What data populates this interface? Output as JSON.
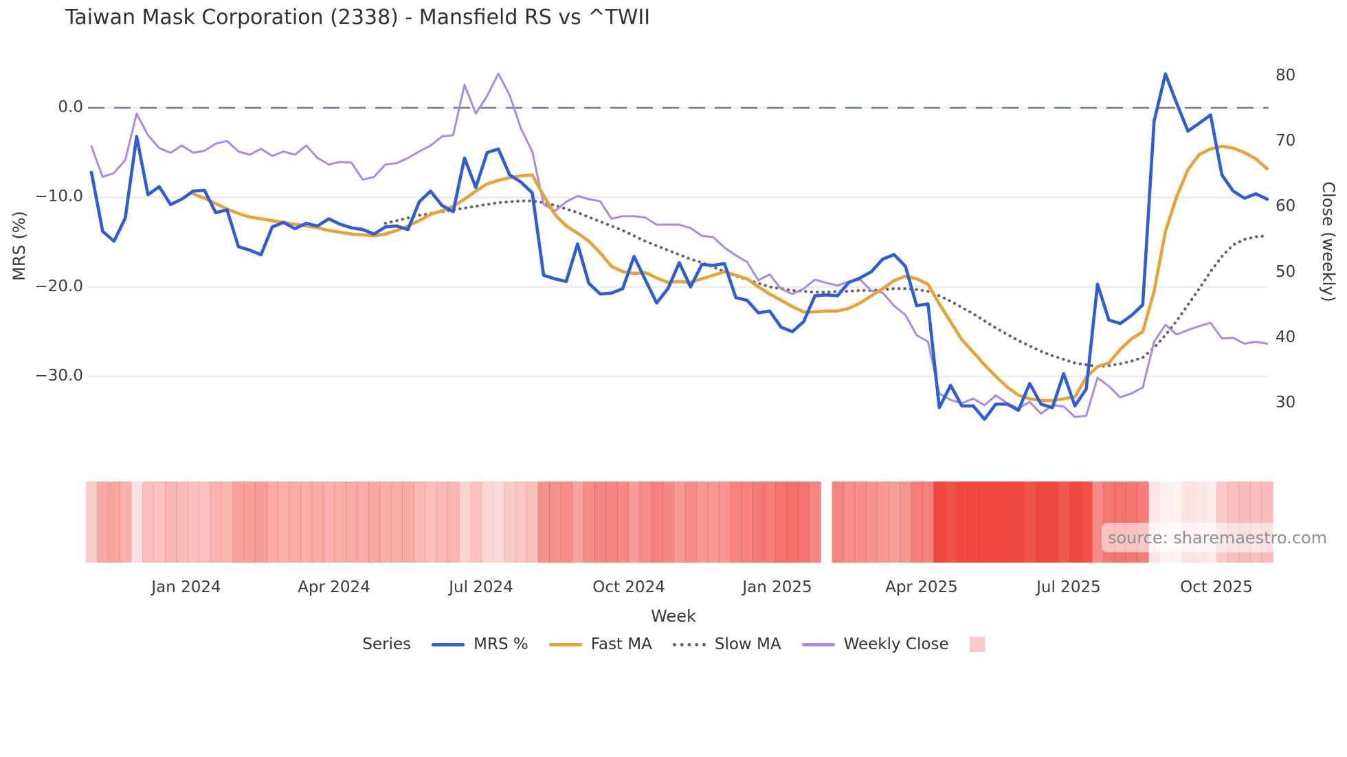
{
  "title": "Taiwan Mask Corporation (2338) - Mansfield RS vs ^TWII",
  "source": "source: sharemaestro.com",
  "colors": {
    "mrs": "#2e5ed6",
    "fast_ma": "#e7a33b",
    "slow_ma": "#63666c",
    "weekly_close": "#aa8be0",
    "zero_dash": "#6a7488",
    "gridline": "#e9ecf3",
    "heat_base": "#ee3e36",
    "legend_patch": "rgba(238,62,54,0.28)"
  },
  "axes": {
    "left": {
      "label": "MRS (%)",
      "ticks": [
        {
          "text": "0.0",
          "value": 0
        },
        {
          "text": "−10.0",
          "value": -10
        },
        {
          "text": "−20.0",
          "value": -20
        },
        {
          "text": "−30.0",
          "value": -30
        }
      ]
    },
    "right": {
      "label": "Close (weekly)",
      "ticks": [
        {
          "text": "80",
          "value": 80
        },
        {
          "text": "70",
          "value": 70
        },
        {
          "text": "60",
          "value": 60
        },
        {
          "text": "50",
          "value": 50
        },
        {
          "text": "40",
          "value": 40
        },
        {
          "text": "30",
          "value": 30
        }
      ]
    },
    "x": {
      "label": "Week",
      "ticks": [
        {
          "text": "Jan 2024",
          "week": 8.39
        },
        {
          "text": "Apr 2024",
          "week": 21.46
        },
        {
          "text": "Jul 2024",
          "week": 34.47
        },
        {
          "text": "Oct 2024",
          "week": 47.54
        },
        {
          "text": "Jan 2025",
          "week": 60.67
        },
        {
          "text": "Apr 2025",
          "week": 73.43
        },
        {
          "text": "Jul 2025",
          "week": 86.44
        },
        {
          "text": "Oct 2025",
          "week": 99.51
        }
      ]
    }
  },
  "legend": {
    "title": "Series",
    "items": [
      {
        "label": "MRS %",
        "swatch": "line",
        "color": "#2e5ed6"
      },
      {
        "label": "Fast MA",
        "swatch": "line",
        "color": "#e7a33b"
      },
      {
        "label": "Slow MA",
        "swatch": "dotted",
        "color": "#63666c"
      },
      {
        "label": "Weekly Close",
        "swatch": "line",
        "color": "#aa8be0"
      },
      {
        "label": "",
        "swatch": "patch",
        "color": "rgba(238,62,54,0.28)"
      }
    ]
  },
  "chart_data": {
    "type": "line",
    "title": "Taiwan Mask Corporation (2338) - Mansfield RS vs ^TWII",
    "xlabel": "Week",
    "ylabel_left": "MRS (%)",
    "ylabel_right": "Close (weekly)",
    "x_unit": "weekly index, Nov 2023 through Nov 2025",
    "weeks": 105,
    "left_ylim": [
      -36,
      4
    ],
    "right_ylim": [
      28,
      82
    ],
    "zero_reference_line": 0,
    "grid": "horizontal only, at left-axis ticks",
    "legend_position": "bottom",
    "series": [
      {
        "name": "MRS %",
        "axis": "left",
        "style": "solid",
        "color": "#2e5ed6",
        "values": [
          -7.2,
          -13.8,
          -14.9,
          -12.3,
          -3.2,
          -9.7,
          -8.8,
          -10.8,
          -10.2,
          -9.3,
          -9.2,
          -11.7,
          -11.4,
          -15.5,
          -15.9,
          -16.4,
          -13.3,
          -12.8,
          -13.5,
          -12.9,
          -13.2,
          -12.4,
          -13.0,
          -13.4,
          -13.6,
          -14.1,
          -13.3,
          -13.2,
          -13.6,
          -10.5,
          -9.3,
          -10.9,
          -11.6,
          -5.6,
          -8.9,
          -5.0,
          -4.6,
          -7.5,
          -8.3,
          -9.5,
          -18.7,
          -19.1,
          -19.4,
          -15.2,
          -19.6,
          -20.8,
          -20.7,
          -20.2,
          -16.6,
          -19.2,
          -21.8,
          -20.2,
          -17.3,
          -20.0,
          -17.5,
          -17.6,
          -17.4,
          -21.2,
          -21.5,
          -22.9,
          -22.7,
          -24.5,
          -25.0,
          -23.9,
          -21.0,
          -20.9,
          -21.0,
          -19.5,
          -19.0,
          -18.3,
          -16.9,
          -16.4,
          -17.7,
          -22.1,
          -21.9,
          -33.5,
          -31.0,
          -33.3,
          -33.3,
          -34.8,
          -33.1,
          -33.1,
          -33.8,
          -30.8,
          -33.1,
          -33.5,
          -29.7,
          -33.3,
          -31.4,
          -19.7,
          -23.7,
          -24.1,
          -23.2,
          -22.0,
          -1.5,
          3.8,
          0.5,
          -2.6,
          -1.7,
          -0.8,
          -7.5,
          -9.3,
          -10.1,
          -9.6,
          -10.2
        ]
      },
      {
        "name": "Fast MA",
        "axis": "left",
        "style": "solid",
        "color": "#e7a33b",
        "values": [
          null,
          null,
          null,
          null,
          null,
          null,
          null,
          null,
          null,
          -9.6,
          -10.1,
          -10.7,
          -11.3,
          -11.8,
          -12.2,
          -12.4,
          -12.6,
          -12.8,
          -13.0,
          -13.2,
          -13.4,
          -13.7,
          -13.9,
          -14.1,
          -14.2,
          -14.3,
          -14.1,
          -13.7,
          -13.2,
          -12.6,
          -11.9,
          -11.5,
          -11.0,
          -10.2,
          -9.3,
          -8.5,
          -8.1,
          -7.8,
          -7.6,
          -7.5,
          -9.8,
          -11.9,
          -13.2,
          -14.0,
          -14.9,
          -16.2,
          -17.7,
          -18.3,
          -18.5,
          -18.4,
          -19.0,
          -19.5,
          -19.4,
          -19.5,
          -19.1,
          -18.7,
          -18.3,
          -18.7,
          -19.1,
          -20.0,
          -20.8,
          -21.5,
          -22.2,
          -22.8,
          -22.8,
          -22.7,
          -22.7,
          -22.4,
          -21.8,
          -21.0,
          -20.2,
          -19.3,
          -18.8,
          -19.1,
          -19.7,
          -21.9,
          -23.9,
          -25.9,
          -27.3,
          -28.7,
          -30.0,
          -31.2,
          -32.1,
          -32.5,
          -32.7,
          -32.7,
          -32.5,
          -32.3,
          -30.1,
          -28.9,
          -28.5,
          -27.0,
          -25.8,
          -25.0,
          -20.5,
          -13.8,
          -9.9,
          -6.9,
          -5.2,
          -4.6,
          -4.3,
          -4.5,
          -5.0,
          -5.7,
          -6.8
        ]
      },
      {
        "name": "Slow MA",
        "axis": "left",
        "style": "dotted",
        "color": "#63666c",
        "values": [
          null,
          null,
          null,
          null,
          null,
          null,
          null,
          null,
          null,
          null,
          null,
          null,
          null,
          null,
          null,
          null,
          null,
          null,
          null,
          null,
          null,
          null,
          null,
          null,
          null,
          null,
          -12.9,
          -12.6,
          -12.3,
          -12.0,
          -11.8,
          -11.6,
          -11.4,
          -11.2,
          -11.0,
          -10.8,
          -10.6,
          -10.5,
          -10.4,
          -10.4,
          -10.6,
          -10.9,
          -11.3,
          -11.7,
          -12.2,
          -12.7,
          -13.2,
          -13.7,
          -14.3,
          -14.9,
          -15.4,
          -15.9,
          -16.4,
          -16.9,
          -17.3,
          -17.8,
          -18.3,
          -18.8,
          -19.2,
          -19.6,
          -20.0,
          -20.2,
          -20.4,
          -20.5,
          -20.6,
          -20.6,
          -20.5,
          -20.5,
          -20.4,
          -20.4,
          -20.3,
          -20.2,
          -20.2,
          -20.3,
          -20.5,
          -21.0,
          -21.6,
          -22.3,
          -23.0,
          -23.8,
          -24.6,
          -25.3,
          -26.0,
          -26.6,
          -27.2,
          -27.7,
          -28.1,
          -28.5,
          -28.7,
          -28.9,
          -28.8,
          -28.6,
          -28.3,
          -27.9,
          -26.8,
          -25.4,
          -23.8,
          -22.0,
          -20.2,
          -18.3,
          -16.6,
          -15.3,
          -14.7,
          -14.4,
          -14.3
        ]
      },
      {
        "name": "Weekly Close",
        "axis": "right",
        "style": "solid",
        "color": "#aa8be0",
        "values": [
          69.3,
          64.6,
          65.2,
          67.2,
          74.3,
          71.0,
          69.0,
          68.3,
          69.4,
          68.3,
          68.6,
          69.7,
          70.1,
          68.5,
          68.0,
          68.9,
          67.8,
          68.5,
          68.0,
          69.4,
          67.5,
          66.5,
          66.9,
          66.8,
          64.2,
          64.6,
          66.5,
          66.7,
          67.5,
          68.5,
          69.4,
          70.8,
          71.0,
          78.7,
          74.3,
          77.0,
          80.4,
          77.1,
          72.0,
          68.5,
          60.4,
          59.4,
          60.8,
          61.7,
          61.2,
          60.9,
          58.2,
          58.6,
          58.6,
          58.4,
          57.3,
          57.3,
          57.3,
          56.8,
          55.6,
          55.4,
          53.8,
          52.6,
          51.6,
          48.8,
          49.7,
          47.5,
          46.7,
          47.5,
          48.9,
          48.4,
          48.0,
          48.6,
          48.9,
          47.2,
          46.9,
          44.9,
          43.5,
          40.4,
          39.4,
          31.5,
          30.5,
          30.0,
          30.7,
          29.7,
          31.2,
          30.0,
          29.2,
          30.2,
          28.4,
          29.7,
          29.5,
          27.9,
          28.1,
          33.9,
          32.6,
          30.9,
          31.5,
          32.4,
          39.4,
          42.0,
          40.5,
          41.2,
          41.8,
          42.3,
          39.9,
          40.0,
          39.1,
          39.4,
          39.1
        ]
      }
    ],
    "heatmap_strip": {
      "description": "weekly red-intensity strip below chart; darker red = more negative MRS %",
      "base_color": "#ee3e36",
      "gap_week": 65,
      "driven_by": "MRS % series"
    }
  }
}
